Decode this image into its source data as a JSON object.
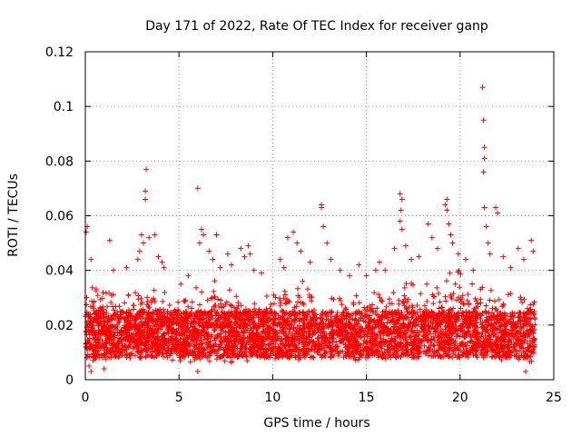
{
  "chart_data": {
    "type": "scatter",
    "title": "Day 171 of 2022, Rate Of TEC Index for receiver ganp",
    "xlabel": "GPS time / hours",
    "ylabel": "ROTI / TECUs",
    "xlim": [
      0,
      25
    ],
    "ylim": [
      0,
      0.12
    ],
    "x_ticks": [
      0,
      5,
      10,
      15,
      20,
      25
    ],
    "x_tick_labels": [
      "0",
      "5",
      "10",
      "15",
      "20",
      "25"
    ],
    "y_ticks": [
      0,
      0.02,
      0.04,
      0.06,
      0.08,
      0.1,
      0.12
    ],
    "y_tick_labels": [
      "0",
      "0.02",
      "0.04",
      "0.06",
      "0.08",
      "0.1",
      "0.12"
    ],
    "grid": true,
    "marker": "+",
    "series_color": "#ff0000",
    "dense_band": {
      "x_range": [
        0,
        24
      ],
      "typical_low": 0.008,
      "typical_high": 0.025,
      "bins": [
        {
          "x": 0.5,
          "low": 0.006,
          "high": 0.035
        },
        {
          "x": 2.0,
          "low": 0.007,
          "high": 0.03
        },
        {
          "x": 3.5,
          "low": 0.007,
          "high": 0.035
        },
        {
          "x": 5.0,
          "low": 0.006,
          "high": 0.03
        },
        {
          "x": 6.5,
          "low": 0.006,
          "high": 0.038
        },
        {
          "x": 8.0,
          "low": 0.006,
          "high": 0.033
        },
        {
          "x": 9.5,
          "low": 0.006,
          "high": 0.03
        },
        {
          "x": 11.0,
          "low": 0.007,
          "high": 0.038
        },
        {
          "x": 12.5,
          "low": 0.007,
          "high": 0.033
        },
        {
          "x": 14.0,
          "low": 0.007,
          "high": 0.03
        },
        {
          "x": 15.5,
          "low": 0.007,
          "high": 0.033
        },
        {
          "x": 17.0,
          "low": 0.007,
          "high": 0.035
        },
        {
          "x": 18.5,
          "low": 0.008,
          "high": 0.038
        },
        {
          "x": 19.5,
          "low": 0.008,
          "high": 0.042
        },
        {
          "x": 21.0,
          "low": 0.008,
          "high": 0.036
        },
        {
          "x": 22.5,
          "low": 0.007,
          "high": 0.032
        },
        {
          "x": 23.8,
          "low": 0.006,
          "high": 0.03
        }
      ]
    },
    "points": [
      {
        "x": 0.05,
        "y": 0.054
      },
      {
        "x": 0.1,
        "y": 0.056
      },
      {
        "x": 0.3,
        "y": 0.044
      },
      {
        "x": 0.2,
        "y": 0.005
      },
      {
        "x": 0.3,
        "y": 0.003
      },
      {
        "x": 1.3,
        "y": 0.051
      },
      {
        "x": 1.5,
        "y": 0.04
      },
      {
        "x": 2.2,
        "y": 0.041
      },
      {
        "x": 2.8,
        "y": 0.044
      },
      {
        "x": 2.9,
        "y": 0.047
      },
      {
        "x": 3.0,
        "y": 0.053
      },
      {
        "x": 3.1,
        "y": 0.05
      },
      {
        "x": 3.25,
        "y": 0.077
      },
      {
        "x": 3.2,
        "y": 0.069
      },
      {
        "x": 3.2,
        "y": 0.066
      },
      {
        "x": 3.4,
        "y": 0.052
      },
      {
        "x": 3.7,
        "y": 0.053
      },
      {
        "x": 3.9,
        "y": 0.045
      },
      {
        "x": 4.1,
        "y": 0.043
      },
      {
        "x": 4.2,
        "y": 0.041
      },
      {
        "x": 5.1,
        "y": 0.035
      },
      {
        "x": 5.5,
        "y": 0.038
      },
      {
        "x": 6.0,
        "y": 0.07
      },
      {
        "x": 6.2,
        "y": 0.055
      },
      {
        "x": 6.3,
        "y": 0.053
      },
      {
        "x": 6.1,
        "y": 0.05
      },
      {
        "x": 6.6,
        "y": 0.047
      },
      {
        "x": 6.8,
        "y": 0.044
      },
      {
        "x": 7.0,
        "y": 0.053
      },
      {
        "x": 7.2,
        "y": 0.041
      },
      {
        "x": 7.6,
        "y": 0.046
      },
      {
        "x": 7.8,
        "y": 0.042
      },
      {
        "x": 8.3,
        "y": 0.048
      },
      {
        "x": 8.5,
        "y": 0.045
      },
      {
        "x": 8.7,
        "y": 0.049
      },
      {
        "x": 8.8,
        "y": 0.046
      },
      {
        "x": 9.0,
        "y": 0.04
      },
      {
        "x": 9.4,
        "y": 0.039
      },
      {
        "x": 10.4,
        "y": 0.044
      },
      {
        "x": 10.6,
        "y": 0.041
      },
      {
        "x": 10.8,
        "y": 0.052
      },
      {
        "x": 11.1,
        "y": 0.054
      },
      {
        "x": 11.3,
        "y": 0.05
      },
      {
        "x": 11.5,
        "y": 0.047
      },
      {
        "x": 12.0,
        "y": 0.043
      },
      {
        "x": 12.6,
        "y": 0.064
      },
      {
        "x": 12.6,
        "y": 0.063
      },
      {
        "x": 12.7,
        "y": 0.056
      },
      {
        "x": 12.9,
        "y": 0.05
      },
      {
        "x": 13.1,
        "y": 0.044
      },
      {
        "x": 13.6,
        "y": 0.04
      },
      {
        "x": 14.1,
        "y": 0.038
      },
      {
        "x": 14.6,
        "y": 0.042
      },
      {
        "x": 15.0,
        "y": 0.038
      },
      {
        "x": 15.5,
        "y": 0.04
      },
      {
        "x": 15.7,
        "y": 0.043
      },
      {
        "x": 16.0,
        "y": 0.04
      },
      {
        "x": 16.5,
        "y": 0.048
      },
      {
        "x": 16.8,
        "y": 0.068
      },
      {
        "x": 16.9,
        "y": 0.066
      },
      {
        "x": 16.85,
        "y": 0.062
      },
      {
        "x": 16.8,
        "y": 0.058
      },
      {
        "x": 16.9,
        "y": 0.055
      },
      {
        "x": 17.1,
        "y": 0.049
      },
      {
        "x": 17.4,
        "y": 0.044
      },
      {
        "x": 17.8,
        "y": 0.045
      },
      {
        "x": 18.3,
        "y": 0.057
      },
      {
        "x": 18.5,
        "y": 0.052
      },
      {
        "x": 18.8,
        "y": 0.048
      },
      {
        "x": 19.2,
        "y": 0.064
      },
      {
        "x": 19.3,
        "y": 0.066
      },
      {
        "x": 19.3,
        "y": 0.062
      },
      {
        "x": 19.4,
        "y": 0.057
      },
      {
        "x": 19.5,
        "y": 0.053
      },
      {
        "x": 19.6,
        "y": 0.05
      },
      {
        "x": 19.9,
        "y": 0.046
      },
      {
        "x": 20.3,
        "y": 0.044
      },
      {
        "x": 20.7,
        "y": 0.04
      },
      {
        "x": 21.2,
        "y": 0.107
      },
      {
        "x": 21.25,
        "y": 0.095
      },
      {
        "x": 21.3,
        "y": 0.085
      },
      {
        "x": 21.3,
        "y": 0.081
      },
      {
        "x": 21.25,
        "y": 0.076
      },
      {
        "x": 21.3,
        "y": 0.063
      },
      {
        "x": 21.4,
        "y": 0.056
      },
      {
        "x": 21.5,
        "y": 0.05
      },
      {
        "x": 21.6,
        "y": 0.046
      },
      {
        "x": 21.9,
        "y": 0.063
      },
      {
        "x": 22.0,
        "y": 0.061
      },
      {
        "x": 22.3,
        "y": 0.045
      },
      {
        "x": 22.7,
        "y": 0.041
      },
      {
        "x": 23.1,
        "y": 0.048
      },
      {
        "x": 23.4,
        "y": 0.044
      },
      {
        "x": 23.8,
        "y": 0.051
      },
      {
        "x": 23.9,
        "y": 0.047
      },
      {
        "x": 23.5,
        "y": 0.003
      },
      {
        "x": 6.0,
        "y": 0.003
      },
      {
        "x": 1.0,
        "y": 0.004
      }
    ]
  }
}
